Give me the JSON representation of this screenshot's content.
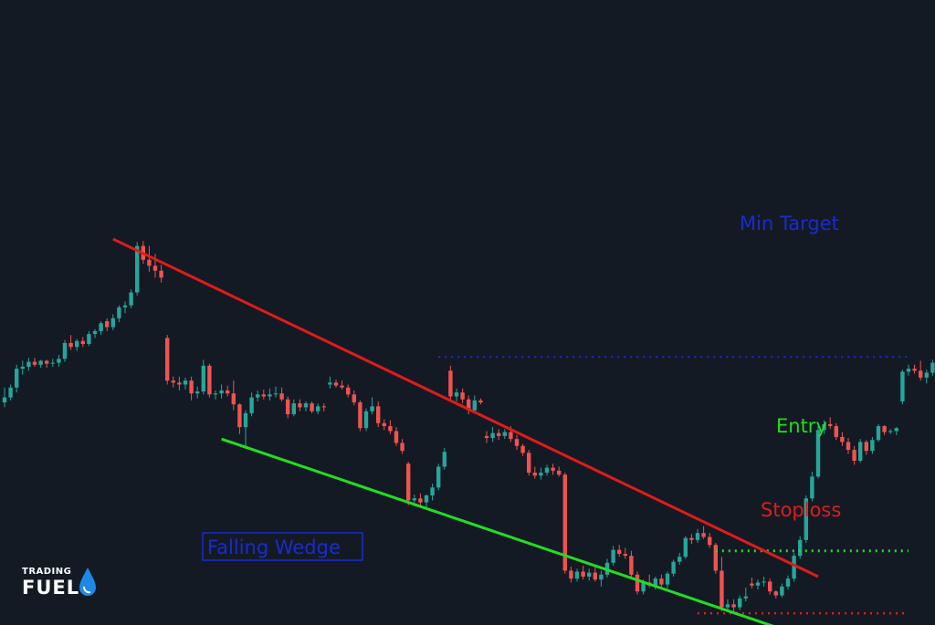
{
  "chart_data": {
    "type": "candlestick",
    "colors": {
      "up": "#26a69a",
      "down": "#ef5350",
      "background": "#141a24",
      "resistance": "#e01b1b",
      "support": "#22dd22",
      "target": "#1a2bd0",
      "entry": "#22dd22",
      "stoploss": "#e01b1b"
    },
    "candles": [
      [
        60,
        61.5,
        59.5,
        60.5
      ],
      [
        60.5,
        61.8,
        60.2,
        61.5
      ],
      [
        61.5,
        63.8,
        61,
        63.4
      ],
      [
        63.4,
        64.2,
        62.8,
        63.6
      ],
      [
        63.6,
        64.5,
        63.2,
        64.1
      ],
      [
        64.1,
        64.5,
        63.6,
        63.8
      ],
      [
        63.8,
        64.3,
        63.5,
        64.2
      ],
      [
        64.2,
        64.3,
        63.5,
        63.9
      ],
      [
        63.9,
        64.4,
        63.6,
        64
      ],
      [
        64,
        64.8,
        63.6,
        64.4
      ],
      [
        64.4,
        66.3,
        64.1,
        66
      ],
      [
        66,
        66.8,
        65.3,
        65.6
      ],
      [
        65.6,
        66.4,
        65.2,
        66.2
      ],
      [
        66.2,
        66.6,
        65.6,
        65.9
      ],
      [
        65.9,
        67.2,
        65.7,
        66.9
      ],
      [
        66.9,
        67.4,
        66.5,
        67.2
      ],
      [
        67.2,
        68.2,
        66.8,
        68
      ],
      [
        68.2,
        68.5,
        67.2,
        67.6
      ],
      [
        67.6,
        68.9,
        67.3,
        68.5
      ],
      [
        68.5,
        69.8,
        68.1,
        69.6
      ],
      [
        69.6,
        70.2,
        69,
        69.8
      ],
      [
        69.8,
        71.4,
        69.5,
        71.1
      ],
      [
        71.1,
        76.2,
        70.8,
        75.8
      ],
      [
        75.8,
        76.3,
        74,
        74.4
      ],
      [
        74.4,
        75.8,
        73.2,
        73.8
      ],
      [
        73.8,
        75,
        72.6,
        73.3
      ],
      [
        73.3,
        73.9,
        72.1,
        72.6
      ],
      [
        66.5,
        66.8,
        61.8,
        62.2
      ],
      [
        62.2,
        62.6,
        61.5,
        62
      ],
      [
        62,
        62.6,
        61.2,
        61.8
      ],
      [
        61.8,
        62.5,
        61.3,
        62.2
      ],
      [
        62.2,
        62.6,
        60.2,
        60.9
      ],
      [
        60.9,
        61.6,
        60.4,
        61.1
      ],
      [
        61.1,
        64.3,
        60.8,
        63.7
      ],
      [
        63.7,
        63.9,
        60.5,
        60.8
      ],
      [
        60.8,
        61.2,
        60.3,
        60.9
      ],
      [
        60.9,
        61.8,
        60.4,
        61.2
      ],
      [
        61.2,
        61.7,
        60.6,
        60.9
      ],
      [
        60.9,
        62.2,
        59.2,
        59.8
      ],
      [
        59.8,
        59.9,
        56.8,
        57.5
      ],
      [
        57.5,
        59.2,
        55.3,
        58.9
      ],
      [
        58.9,
        61,
        58.6,
        60.5
      ],
      [
        60.5,
        61.2,
        60.1,
        60.8
      ],
      [
        60.8,
        61.3,
        60.3,
        60.6
      ],
      [
        60.6,
        61.4,
        60.2,
        60.8
      ],
      [
        60.8,
        61.6,
        60.5,
        60.9
      ],
      [
        60.9,
        61.5,
        60.1,
        60.3
      ],
      [
        60.3,
        60.6,
        58.4,
        58.8
      ],
      [
        58.8,
        60.3,
        58.6,
        59.9
      ],
      [
        59.9,
        60.3,
        59.1,
        59.5
      ],
      [
        59.5,
        60.1,
        59.1,
        59.9
      ],
      [
        59.9,
        60.1,
        58.9,
        59.1
      ],
      [
        59.1,
        59.9,
        58.8,
        59.6
      ],
      [
        59.6,
        59.9,
        59.1,
        59.5
      ],
      [
        61.8,
        62.6,
        61.4,
        62
      ],
      [
        62,
        62.3,
        61.5,
        61.7
      ],
      [
        61.7,
        62.2,
        61.3,
        61.5
      ],
      [
        61.5,
        61.8,
        60.5,
        60.8
      ],
      [
        60.8,
        61.2,
        59.7,
        60
      ],
      [
        60,
        60.2,
        57.1,
        57.4
      ],
      [
        57.4,
        59.4,
        57.1,
        59.1
      ],
      [
        59.1,
        60.5,
        58.8,
        59.6
      ],
      [
        59.6,
        60.1,
        57.5,
        57.9
      ],
      [
        57.9,
        58.3,
        57.2,
        57.6
      ],
      [
        57.6,
        58.2,
        56.8,
        57.1
      ],
      [
        57.1,
        57.5,
        55.6,
        55.9
      ],
      [
        55.9,
        56.3,
        54.8,
        55.1
      ],
      [
        53.8,
        54,
        49.6,
        50.1
      ],
      [
        50.1,
        50.7,
        49.5,
        50.3
      ],
      [
        50.3,
        50.8,
        49.5,
        49.9
      ],
      [
        49.9,
        50.7,
        49.4,
        50.6
      ],
      [
        50.6,
        51.8,
        50.1,
        51.4
      ],
      [
        51.4,
        53.8,
        51.1,
        53.5
      ],
      [
        53.5,
        55.4,
        53.2,
        55
      ],
      [
        63.2,
        63.7,
        60.2,
        60.6
      ],
      [
        60.6,
        61.4,
        60.1,
        61
      ],
      [
        61,
        61.4,
        59.9,
        60.3
      ],
      [
        60.3,
        60.7,
        58.8,
        59.2
      ],
      [
        59.2,
        60.7,
        58.9,
        60.2
      ],
      [
        60.2,
        60.4,
        59.8,
        60
      ],
      [
        56.6,
        57.1,
        55.9,
        56.4
      ],
      [
        56.4,
        57.5,
        56,
        56.9
      ],
      [
        56.9,
        57.3,
        56.2,
        56.6
      ],
      [
        56.6,
        57.3,
        56.3,
        57
      ],
      [
        57,
        57.6,
        56,
        56.3
      ],
      [
        56.3,
        56.7,
        55.2,
        55.6
      ],
      [
        55.6,
        55.8,
        54.6,
        54.9
      ],
      [
        54.9,
        55.2,
        52.6,
        52.9
      ],
      [
        52.9,
        53.5,
        52.3,
        52.6
      ],
      [
        52.6,
        53.4,
        52.2,
        52.9
      ],
      [
        52.9,
        53.7,
        52.6,
        53.4
      ],
      [
        53.4,
        53.8,
        52.7,
        53.1
      ],
      [
        53.1,
        53.5,
        52.5,
        52.7
      ],
      [
        52.7,
        52.9,
        42.7,
        43
      ],
      [
        43,
        43.4,
        41.8,
        42.2
      ],
      [
        42.2,
        43.2,
        41.9,
        42.9
      ],
      [
        42.9,
        43.5,
        42.1,
        42.4
      ],
      [
        42.4,
        43.2,
        42,
        42.8
      ],
      [
        42.8,
        43.5,
        41.9,
        42.1
      ],
      [
        42.1,
        43,
        41.4,
        42.6
      ],
      [
        42.6,
        44.2,
        42.3,
        43.8
      ],
      [
        43.8,
        45.5,
        43.5,
        45.1
      ],
      [
        45.1,
        45.6,
        44.4,
        44.7
      ],
      [
        44.7,
        45.3,
        44.2,
        44.5
      ],
      [
        44.5,
        45,
        42.3,
        42.6
      ],
      [
        42.6,
        42.9,
        40.6,
        40.9
      ],
      [
        40.9,
        42.1,
        40.6,
        41.8
      ],
      [
        41.8,
        42.6,
        41.3,
        41.5
      ],
      [
        41.5,
        42.4,
        41.1,
        42.2
      ],
      [
        42.2,
        42.6,
        41.3,
        41.6
      ],
      [
        41.6,
        42.9,
        41.2,
        42.7
      ],
      [
        42.7,
        44.1,
        42.4,
        43.9
      ],
      [
        43.9,
        44.8,
        43.6,
        44.4
      ],
      [
        44.4,
        46.5,
        44.2,
        46.3
      ],
      [
        46.3,
        46.7,
        45.7,
        46.1
      ],
      [
        46.1,
        47.2,
        45.8,
        46.8
      ],
      [
        46.8,
        47.5,
        46.2,
        46.4
      ],
      [
        46.4,
        46.8,
        45.3,
        45.6
      ],
      [
        45.6,
        45.8,
        42.7,
        43
      ],
      [
        43,
        44.4,
        38.9,
        39.3
      ],
      [
        39.3,
        40.1,
        38.9,
        39.6
      ],
      [
        39.6,
        40.1,
        38.7,
        39.3
      ],
      [
        39.3,
        40.5,
        39,
        40.2
      ],
      [
        40.2,
        41.3,
        39.9,
        40.4
      ],
      [
        41.7,
        42.3,
        41.2,
        41.5
      ],
      [
        41.5,
        42.1,
        41.1,
        41.8
      ],
      [
        41.8,
        42.4,
        41.4,
        41.9
      ],
      [
        41.9,
        42.2,
        40.6,
        40.9
      ],
      [
        40.9,
        41,
        40.2,
        40.5
      ],
      [
        40.5,
        41.7,
        40.3,
        41.4
      ],
      [
        41.4,
        42.5,
        41.1,
        42.2
      ],
      [
        42.2,
        44.8,
        41.9,
        44.5
      ],
      [
        44.5,
        46.5,
        44.2,
        46.1
      ],
      [
        46.1,
        50.6,
        45.8,
        50.3
      ],
      [
        50.3,
        53,
        50,
        52.5
      ],
      [
        52.5,
        57.6,
        52.3,
        57.2
      ],
      [
        57.2,
        58.2,
        56.8,
        57.8
      ],
      [
        57.8,
        58.5,
        57.3,
        57.6
      ],
      [
        57.6,
        57.9,
        56.2,
        56.5
      ],
      [
        56.5,
        57,
        55.6,
        56
      ],
      [
        56,
        56.4,
        54.8,
        55.2
      ],
      [
        55.2,
        55.6,
        53.7,
        54.1
      ],
      [
        54.1,
        56.3,
        53.9,
        56
      ],
      [
        56,
        56.2,
        54.7,
        55.1
      ],
      [
        55.1,
        56.5,
        54.8,
        56.2
      ],
      [
        56.2,
        57.8,
        56,
        57.6
      ],
      [
        57.6,
        57.7,
        56.7,
        57
      ],
      [
        57,
        57.3,
        56.8,
        57.1
      ],
      [
        57.1,
        57.5,
        56.7,
        57.4
      ],
      [
        60.1,
        63.3,
        59.8,
        63.1
      ],
      [
        63.1,
        63.8,
        62.7,
        63.4
      ],
      [
        63.4,
        63.8,
        62.9,
        63.2
      ],
      [
        63.2,
        64.2,
        62.2,
        62.5
      ],
      [
        62.5,
        63.3,
        61.9,
        63
      ],
      [
        63,
        64.3,
        62.7,
        64
      ],
      [
        64,
        64.4,
        63.2,
        63.6
      ],
      [
        63.6,
        65.1,
        63.3,
        64.8
      ],
      [
        64.8,
        65.6,
        64.4,
        65.3
      ],
      [
        65.3,
        66.3,
        65,
        66
      ],
      [
        66,
        66.6,
        65.6,
        66.4
      ],
      [
        69.8,
        70.6,
        69.5,
        70.2
      ],
      [
        70.2,
        71.3,
        69.9,
        71.1
      ],
      [
        71.1,
        71.5,
        70.7,
        71.3
      ],
      [
        71.3,
        73.6,
        71,
        73.3
      ],
      [
        73.3,
        73.4,
        71,
        71.4
      ]
    ],
    "trendlines": [
      {
        "name": "resistance",
        "from": [
          18,
          76.5
        ],
        "to": [
          135,
          42.4
        ]
      },
      {
        "name": "support",
        "from": [
          36,
          56.3
        ],
        "to": [
          128,
          37.3
        ]
      }
    ],
    "levels": [
      {
        "name": "Min Target",
        "value": 64.6,
        "from": 72,
        "to": 150
      },
      {
        "name": "Entry",
        "value": 45,
        "from": 118,
        "to": 150
      },
      {
        "name": "Stoploss",
        "value": 38.7,
        "from": 115,
        "to": 150
      }
    ],
    "annotations": {
      "target_label": "Min Target",
      "entry_label": "Entry",
      "stoploss_label": "Stoploss",
      "pattern_label": "Falling Wedge"
    }
  },
  "logo": {
    "top": "TRADING",
    "bottom": "FUEL"
  }
}
